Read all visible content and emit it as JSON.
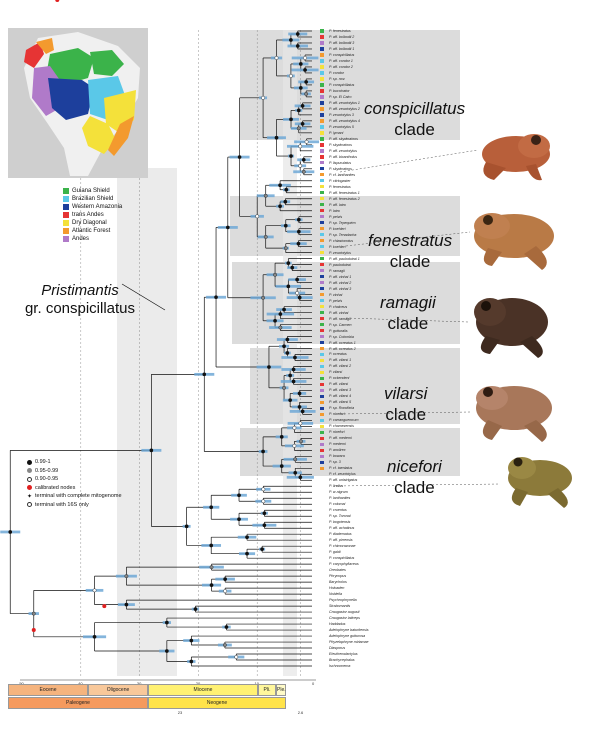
{
  "clades": [
    {
      "name": "conspicillatus",
      "suffix": "clade",
      "top": 98,
      "left": 364
    },
    {
      "name": "fenestratus",
      "suffix": "clade",
      "top": 230,
      "left": 368
    },
    {
      "name": "ramagii",
      "suffix": "clade",
      "top": 292,
      "left": 380
    },
    {
      "name": "vilarsi",
      "suffix": "clade",
      "top": 383,
      "left": 384
    },
    {
      "name": "nicefori",
      "suffix": "clade",
      "top": 456,
      "left": 387
    }
  ],
  "group_label": {
    "line1": "Pristimantis",
    "line2_it": "gr. conspicillatus"
  },
  "region_legend": [
    {
      "label": "Guiana Shield",
      "color": "#3bb34a"
    },
    {
      "label": "Brazilian Shield",
      "color": "#5ac8e8"
    },
    {
      "label": "Western Amazonia",
      "color": "#1d3f9c"
    },
    {
      "label": "trans Andes",
      "color": "#e63434"
    },
    {
      "label": "Dry Diagonal",
      "color": "#f4e13a"
    },
    {
      "label": "Atlantic Forest",
      "color": "#f39a2e"
    },
    {
      "label": "Andes",
      "color": "#b07ac9"
    }
  ],
  "node_legend": [
    {
      "label": "0.99-1",
      "kind": "black"
    },
    {
      "label": "0.95-0.99",
      "kind": "gray"
    },
    {
      "label": "0.90-0.95",
      "kind": "white"
    },
    {
      "label": "calibrated nodes",
      "kind": "red"
    },
    {
      "label": "terminal with complete mitogenome",
      "kind": "star"
    },
    {
      "label": "terminal with 16S only",
      "kind": "open"
    }
  ],
  "axis_ticks": [
    "-50",
    "-40",
    "-30",
    "-20",
    "-10",
    "0"
  ],
  "epochs": [
    {
      "label": "Eocene",
      "color": "#f5b47e"
    },
    {
      "label": "Oligocene",
      "color": "#f8c89a"
    },
    {
      "label": "Miocene",
      "color": "#fff173"
    },
    {
      "label": "Pli.",
      "color": "#fff79c"
    },
    {
      "label": "Ple.",
      "color": "#fffbc8"
    }
  ],
  "periods": [
    {
      "label": "Paleogene",
      "color": "#f59a5e"
    },
    {
      "label": "Neogene",
      "color": "#ffe34a"
    }
  ],
  "period_ticks": [
    "23",
    "2.6"
  ],
  "tips": [
    "P. fenestratus",
    "P. aff. bolbodii 2",
    "P. aff. bolbodii 3",
    "P. aff. bolbodii 1",
    "P. conspicillatus",
    "P. aff. condor 1",
    "P. aff. condor 2",
    "P. condor",
    "P. sp. nov.",
    "P. conspicillatus",
    "P. buccinator",
    "P. sp. El Cairo",
    "P. aff. zeuctotylus 1",
    "P. aff. zeuctotylus 2",
    "P. zeuctotylus 3",
    "P. aff. zeuctotylus 4",
    "P. zeuctotylus 5",
    "P. lymani",
    "P. aff. skydmainos",
    "P. skydmainos",
    "P. aff. zeuctotylus",
    "P. aff. bicantholus",
    "P. lispurulatus",
    "P. skydmainos",
    "P. cf. lanthanites",
    "P. citriogaster",
    "P. fenestratus",
    "P. aff. fenestratus 1",
    "P. aff. fenestratus 2",
    "P. aff. latro",
    "P. latro",
    "P. pelvis",
    "P. sp. Tepequém",
    "P. koehleri",
    "P. sp. Tenadacha",
    "P. chiastonotus",
    "P. koehleri",
    "P. zeuctotylus",
    "P. aff. paulodutrai 1",
    "P. paulodutrai",
    "P. ramagii",
    "P. aff. vinhai 1",
    "P. aff. vinhai 2",
    "P. aff. vinhai 3",
    "P. vinhai",
    "P. pelvis",
    "P. chalceus",
    "P. aff. vinhai",
    "P. aff. ramagii",
    "P. sp. Carmen",
    "P. gutturalis",
    "P. sp. Colombia",
    "P. aff. ocreatus 1",
    "P. aff. ocreatus 2",
    "P. ocreatus",
    "P. aff. vilarsi 1",
    "P. aff. vilarsi 2",
    "P. vilarsi",
    "P. ockendeni",
    "P. aff. vilarsi",
    "P. aff. vilarsi 3",
    "P. aff. vilarsi 4",
    "P. aff. vilarsi 5",
    "P. sp. Rondônia",
    "P. nicefori",
    "P. carranguerorum",
    "P. chamezensis",
    "P. nicefori",
    "P. aff. medemi",
    "P. medemi",
    "P. anolirex",
    "P. bowara",
    "P. sp. 3",
    "P. cf. taeniatus",
    "P. cf. zeuctotylus",
    "P. aff. unistrigatus",
    "P. lirellus",
    "P. w-nigrum",
    "P. lanthanites",
    "P. colomai",
    "P. cruentus",
    "P. sp. Toronal",
    "P. bogotensis",
    "P. aff. achatinus",
    "P. diadematus",
    "P. aff. pirrensis",
    "P. chimorazonae",
    "P. galdi",
    "P. conspicillatus",
    "P. caryophyllaceus",
    "Oreobates",
    "Phrynopus",
    "Barycholos",
    "Holoaden",
    "Noblella",
    "Psychrophrynella",
    "Strabomantis",
    "Craugastor augusti",
    "Craugastor laticeps",
    "Haddadus",
    "Adelophryne baturitensis",
    "Adelophryne gutturosa",
    "Phyzelaphryne miriamae",
    "Diasporus",
    "Eleutherodactylus",
    "Brachycephalus",
    "Ischnocnema"
  ]
}
